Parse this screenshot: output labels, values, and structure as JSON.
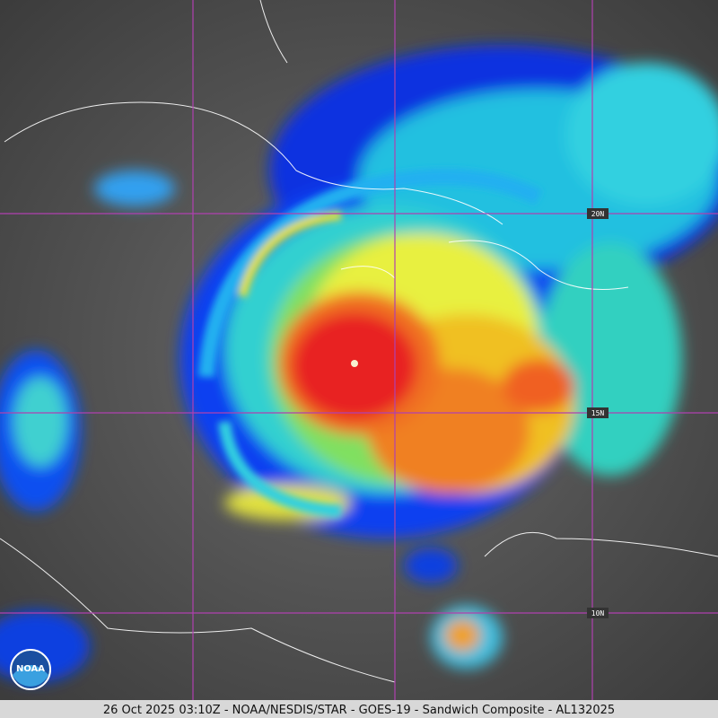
{
  "grid_labels": [
    "20N",
    "15N",
    "10N"
  ],
  "logo": "NOAA",
  "footer": "26 Oct 2025 03:10Z - NOAA/NESDIS/STAR - GOES-19 - Sandwich Composite - AL132025"
}
